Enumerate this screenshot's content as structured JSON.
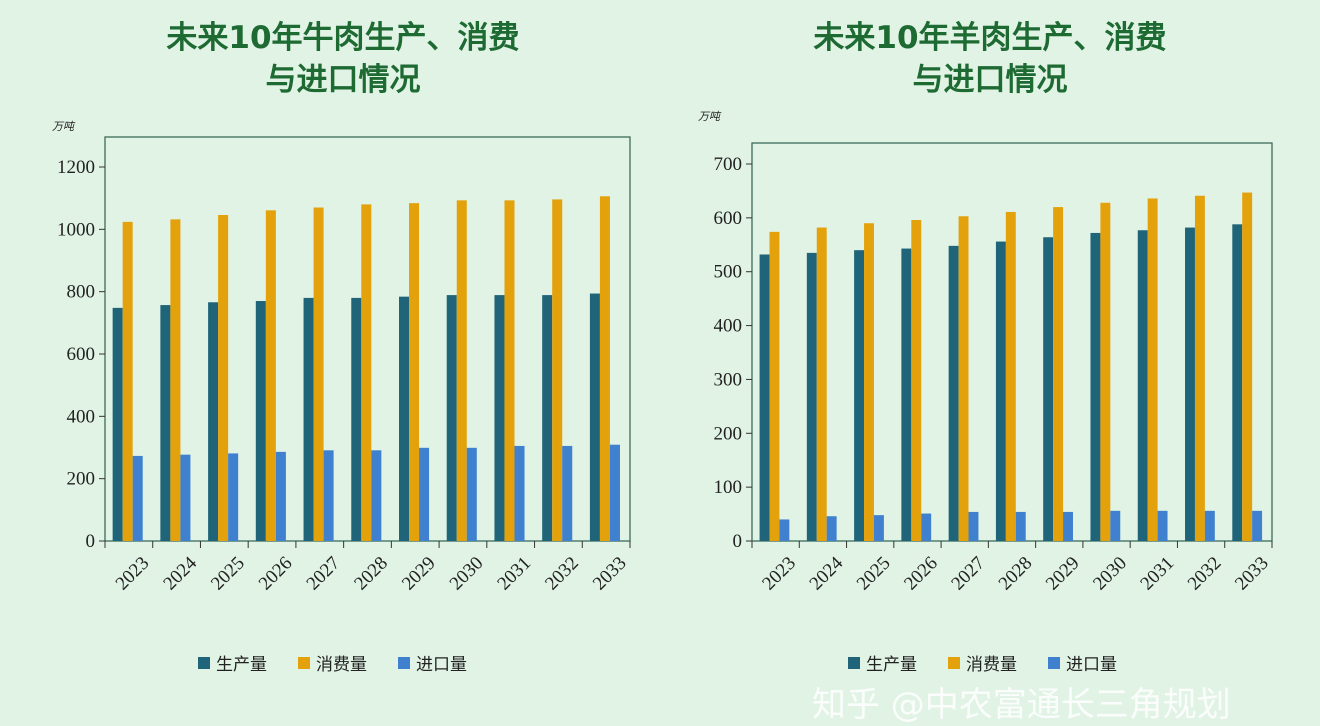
{
  "colors": {
    "production": "#1f6478",
    "consumption": "#e3a20c",
    "import": "#3f80cf",
    "title": "#1e6a33",
    "background": "#e1f3e5"
  },
  "watermark": "知乎 @中农富通长三角规划",
  "chart_data": [
    {
      "type": "bar",
      "title_line1": "未来10年牛肉生产、消费",
      "title_line2": "与进口情况",
      "ylabel": "万吨",
      "ylim": [
        0,
        1200
      ],
      "yticks": [
        0,
        200,
        400,
        600,
        800,
        1000,
        1200
      ],
      "legend_position": "bottom",
      "grid": false,
      "categories": [
        "2023",
        "2024",
        "2025",
        "2026",
        "2027",
        "2028",
        "2029",
        "2030",
        "2031",
        "2032",
        "2033"
      ],
      "series": [
        {
          "name": "生产量",
          "values": [
            748,
            757,
            766,
            770,
            780,
            780,
            784,
            789,
            789,
            789,
            794
          ]
        },
        {
          "name": "消费量",
          "values": [
            1024,
            1032,
            1046,
            1061,
            1070,
            1080,
            1084,
            1093,
            1093,
            1096,
            1106
          ]
        },
        {
          "name": "进口量",
          "values": [
            273,
            277,
            281,
            286,
            291,
            291,
            299,
            299,
            305,
            305,
            309
          ]
        }
      ]
    },
    {
      "type": "bar",
      "title_line1": "未来10年羊肉生产、消费",
      "title_line2": "与进口情况",
      "ylabel": "万吨",
      "ylim": [
        0,
        700
      ],
      "yticks": [
        0,
        100,
        200,
        300,
        400,
        500,
        600,
        700
      ],
      "legend_position": "bottom",
      "grid": false,
      "categories": [
        "2023",
        "2024",
        "2025",
        "2026",
        "2027",
        "2028",
        "2029",
        "2030",
        "2031",
        "2032",
        "2033"
      ],
      "series": [
        {
          "name": "生产量",
          "values": [
            532,
            535,
            540,
            543,
            548,
            556,
            564,
            572,
            577,
            582,
            588
          ]
        },
        {
          "name": "消费量",
          "values": [
            574,
            582,
            590,
            596,
            603,
            611,
            620,
            628,
            636,
            641,
            647
          ]
        },
        {
          "name": "进口量",
          "values": [
            40,
            46,
            48,
            51,
            54,
            54,
            54,
            56,
            56,
            56,
            56
          ]
        }
      ]
    }
  ]
}
